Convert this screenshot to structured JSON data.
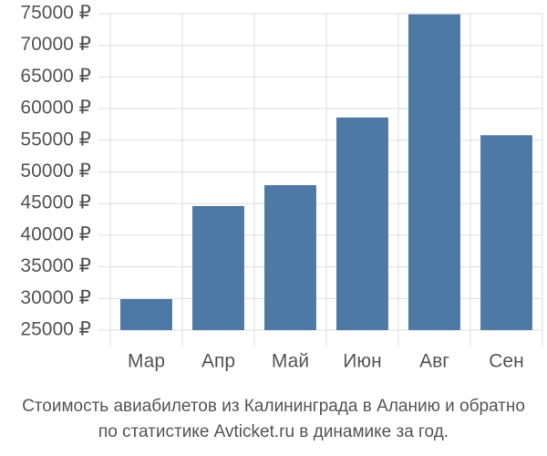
{
  "chart_data": {
    "type": "bar",
    "categories": [
      "Мар",
      "Апр",
      "Май",
      "Июн",
      "Авг",
      "Сен"
    ],
    "values": [
      29900,
      44600,
      47900,
      58600,
      74900,
      55800
    ],
    "color": "#4e79a7",
    "ylim": [
      25000,
      75000
    ],
    "yticks": [
      {
        "value": 25000,
        "label": "25000 ₽"
      },
      {
        "value": 30000,
        "label": "30000 ₽"
      },
      {
        "value": 35000,
        "label": "35000 ₽"
      },
      {
        "value": 40000,
        "label": "40000 ₽"
      },
      {
        "value": 45000,
        "label": "45000 ₽"
      },
      {
        "value": 50000,
        "label": "50000 ₽"
      },
      {
        "value": 55000,
        "label": "55000 ₽"
      },
      {
        "value": 60000,
        "label": "60000 ₽"
      },
      {
        "value": 65000,
        "label": "65000 ₽"
      },
      {
        "value": 70000,
        "label": "70000 ₽"
      },
      {
        "value": 75000,
        "label": "75000 ₽"
      }
    ],
    "grid": true,
    "caption": [
      "Стоимость авиабилетов из Калининграда в Аланию и обратно",
      "по статистике Avticket.ru в динамике за год."
    ]
  }
}
